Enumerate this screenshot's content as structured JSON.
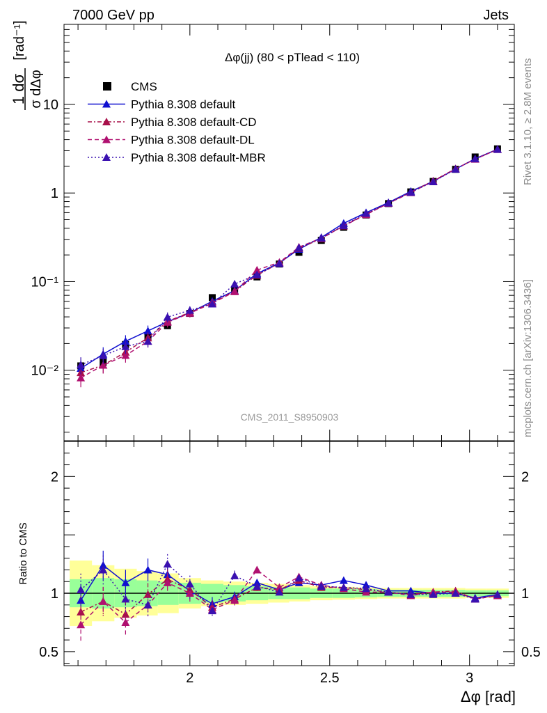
{
  "header": {
    "energy_label": "7000 GeV pp",
    "process_label": "Jets",
    "plot_title": "Δφ(jj) (80 < pTlead <  110)",
    "analysis_id": "CMS_2011_S8950903",
    "side_rivet": "Rivet 3.1.10, ≥ 2.8M events",
    "side_site": "mcplots.cern.ch [arXiv:1306.3436]"
  },
  "colors": {
    "data": "#000000",
    "default": "#1010d0",
    "default_cd": "#a8104a",
    "default_dl": "#b01070",
    "default_mbr": "#3a10b0",
    "band_inner": "#99ff99",
    "band_outer": "#ffff99"
  },
  "chart_data": [
    {
      "type": "line",
      "panel": "main",
      "title": "Δφ(jj) (80 < pTlead <  110)",
      "ylabel_num": "1  dσ",
      "ylabel_den": "σ dΔφ",
      "ylabel_unit": "[rad⁻¹]",
      "yscale": "log",
      "xlim": [
        1.55,
        3.16
      ],
      "ylim": [
        0.0016,
        80
      ],
      "y_ticks": [
        {
          "value": 10,
          "label": "10"
        },
        {
          "value": 1,
          "label": "1"
        },
        {
          "value": 0.1,
          "label": "10⁻¹"
        },
        {
          "value": 0.01,
          "label": "10⁻²"
        }
      ],
      "legend_position": "top-left",
      "x": [
        1.61,
        1.69,
        1.77,
        1.85,
        1.92,
        2.0,
        2.08,
        2.16,
        2.24,
        2.32,
        2.39,
        2.47,
        2.55,
        2.63,
        2.71,
        2.79,
        2.87,
        2.95,
        3.02,
        3.1
      ],
      "series": [
        {
          "name": "CMS",
          "key": "data",
          "marker": "square",
          "line": "none",
          "values": [
            0.0112,
            0.0123,
            0.0195,
            0.0235,
            0.0318,
            0.0438,
            0.066,
            0.082,
            0.113,
            0.158,
            0.214,
            0.292,
            0.41,
            0.565,
            0.76,
            1.03,
            1.35,
            1.85,
            2.55,
            3.15
          ]
        },
        {
          "name": "Pythia 8.308 default",
          "key": "default",
          "marker": "triangle",
          "line": "solid",
          "values": [
            0.0105,
            0.0152,
            0.0212,
            0.0278,
            0.0352,
            0.0445,
            0.06,
            0.079,
            0.123,
            0.163,
            0.232,
            0.315,
            0.455,
            0.6,
            0.78,
            1.045,
            1.355,
            1.86,
            2.44,
            3.12
          ]
        },
        {
          "name": "Pythia 8.308 default-CD",
          "key": "default_cd",
          "marker": "triangle",
          "line": "dashdot",
          "values": [
            0.0094,
            0.0114,
            0.016,
            0.0232,
            0.0355,
            0.045,
            0.058,
            0.078,
            0.118,
            0.162,
            0.238,
            0.305,
            0.43,
            0.575,
            0.77,
            1.02,
            1.37,
            1.88,
            2.42,
            3.1
          ]
        },
        {
          "name": "Pythia 8.308 default-DL",
          "key": "default_dl",
          "marker": "triangle",
          "line": "dashed",
          "values": [
            0.0082,
            0.0114,
            0.0147,
            0.0212,
            0.0348,
            0.044,
            0.057,
            0.077,
            0.135,
            0.165,
            0.245,
            0.31,
            0.425,
            0.57,
            0.765,
            1.01,
            1.36,
            1.87,
            2.41,
            3.1
          ]
        },
        {
          "name": "Pythia 8.308 default-MBR",
          "key": "default_mbr",
          "marker": "triangle",
          "line": "dotted",
          "values": [
            0.0115,
            0.0146,
            0.0185,
            0.0212,
            0.0398,
            0.0475,
            0.056,
            0.094,
            0.12,
            0.16,
            0.242,
            0.31,
            0.43,
            0.59,
            0.77,
            1.02,
            1.34,
            1.86,
            2.43,
            3.11
          ]
        }
      ]
    },
    {
      "type": "line",
      "panel": "ratio",
      "ylabel": "Ratio to CMS",
      "xlabel": "Δφ [rad]",
      "xlim": [
        1.55,
        3.16
      ],
      "ylim": [
        0.38,
        2.3
      ],
      "x_ticks": [
        {
          "value": 2,
          "label": "2"
        },
        {
          "value": 2.5,
          "label": "2.5"
        },
        {
          "value": 3,
          "label": "3"
        }
      ],
      "y_ticks": [
        {
          "value": 0.5,
          "label": "0.5"
        },
        {
          "value": 1,
          "label": "1"
        },
        {
          "value": 2,
          "label": "2"
        }
      ],
      "x": [
        1.61,
        1.69,
        1.77,
        1.85,
        1.92,
        2.0,
        2.08,
        2.16,
        2.24,
        2.32,
        2.39,
        2.47,
        2.55,
        2.63,
        2.71,
        2.79,
        2.87,
        2.95,
        3.02,
        3.1
      ],
      "band_inner": [
        0.12,
        0.13,
        0.12,
        0.11,
        0.1,
        0.09,
        0.08,
        0.07,
        0.06,
        0.05,
        0.05,
        0.04,
        0.04,
        0.035,
        0.03,
        0.03,
        0.03,
        0.03,
        0.025,
        0.025
      ],
      "band_outer": [
        0.28,
        0.24,
        0.21,
        0.19,
        0.17,
        0.13,
        0.11,
        0.1,
        0.09,
        0.08,
        0.07,
        0.06,
        0.055,
        0.05,
        0.045,
        0.045,
        0.045,
        0.045,
        0.04,
        0.04
      ],
      "series": [
        {
          "name": "Pythia 8.308 default",
          "key": "default",
          "line": "solid",
          "values": [
            0.94,
            1.24,
            1.09,
            1.2,
            1.16,
            1.02,
            0.91,
            0.97,
            1.09,
            1.03,
            1.09,
            1.07,
            1.11,
            1.07,
            1.02,
            1.02,
            1.0,
            1.0,
            0.96,
            0.99
          ]
        },
        {
          "name": "Pythia 8.308 default-CD",
          "key": "default_cd",
          "line": "dashdot",
          "values": [
            0.84,
            0.93,
            0.82,
            0.99,
            1.12,
            1.03,
            0.88,
            0.95,
            1.05,
            1.03,
            1.11,
            1.05,
            1.05,
            1.03,
            1.01,
            0.99,
            1.01,
            1.02,
            0.95,
            0.98
          ]
        },
        {
          "name": "Pythia 8.308 default-DL",
          "key": "default_dl",
          "line": "dashed",
          "values": [
            0.73,
            0.93,
            0.75,
            0.9,
            1.09,
            1.0,
            0.86,
            0.94,
            1.2,
            1.05,
            1.14,
            1.07,
            1.04,
            1.01,
            1.01,
            0.98,
            1.01,
            1.01,
            0.95,
            0.98
          ]
        },
        {
          "name": "Pythia 8.308 default-MBR",
          "key": "default_mbr",
          "line": "dotted",
          "values": [
            1.03,
            1.2,
            0.95,
            0.9,
            1.25,
            1.08,
            0.85,
            1.15,
            1.06,
            1.01,
            1.13,
            1.06,
            1.05,
            1.04,
            1.01,
            0.99,
            0.99,
            1.0,
            0.95,
            0.99
          ]
        }
      ]
    }
  ]
}
